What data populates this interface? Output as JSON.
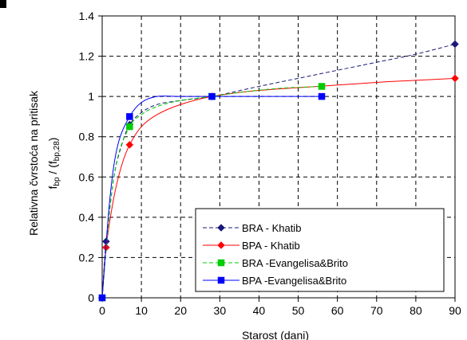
{
  "chart_data": {
    "type": "line",
    "title": "",
    "xlabel": "Starost (dani)",
    "ylabel_line1": "Relativna čvrstoća na pritisak",
    "ylabel_line2": {
      "f1": "f",
      "s1": "bp",
      "mid": " / (f",
      "s2": "bp,28",
      "end": ")"
    },
    "xlim": [
      0,
      90
    ],
    "ylim": [
      0,
      1.4
    ],
    "xticks": [
      0,
      10,
      20,
      30,
      40,
      50,
      60,
      70,
      80,
      90
    ],
    "yticks": [
      0,
      0.2,
      0.4,
      0.6,
      0.8,
      1,
      1.2,
      1.4
    ],
    "ytick_labels": [
      "0",
      "0.2",
      "0.4",
      "0.6",
      "0.8",
      "1",
      "1.2",
      "1.4"
    ],
    "grid": true,
    "legend_position": "bottom-right",
    "series": [
      {
        "name": "BRA - Khatib",
        "color": "#1a1a7a",
        "dash": true,
        "marker": "diamond",
        "markers": [
          [
            0,
            0
          ],
          [
            1,
            0.28
          ],
          [
            7,
            0.86
          ],
          [
            28,
            1.0
          ],
          [
            90,
            1.26
          ]
        ],
        "curve": [
          [
            0,
            0
          ],
          [
            1,
            0.28
          ],
          [
            3,
            0.6
          ],
          [
            5,
            0.76
          ],
          [
            7,
            0.86
          ],
          [
            10,
            0.92
          ],
          [
            14,
            0.96
          ],
          [
            20,
            0.98
          ],
          [
            28,
            1.0
          ],
          [
            40,
            1.05
          ],
          [
            55,
            1.11
          ],
          [
            70,
            1.17
          ],
          [
            80,
            1.21
          ],
          [
            90,
            1.26
          ]
        ]
      },
      {
        "name": "BPA - Khatib",
        "color": "#ff0000",
        "dash": false,
        "marker": "diamond",
        "markers": [
          [
            0,
            0
          ],
          [
            1,
            0.25
          ],
          [
            7,
            0.76
          ],
          [
            28,
            1.0
          ],
          [
            90,
            1.09
          ]
        ],
        "curve": [
          [
            0,
            0
          ],
          [
            1,
            0.25
          ],
          [
            3,
            0.5
          ],
          [
            5,
            0.66
          ],
          [
            7,
            0.76
          ],
          [
            10,
            0.85
          ],
          [
            14,
            0.91
          ],
          [
            20,
            0.96
          ],
          [
            28,
            1.0
          ],
          [
            40,
            1.03
          ],
          [
            55,
            1.05
          ],
          [
            70,
            1.07
          ],
          [
            80,
            1.08
          ],
          [
            90,
            1.09
          ]
        ]
      },
      {
        "name": "BRA -Evangelisa&Brito",
        "color": "#00cc00",
        "dash": true,
        "marker": "square",
        "markers": [
          [
            0,
            0
          ],
          [
            7,
            0.85
          ],
          [
            28,
            1.0
          ],
          [
            56,
            1.05
          ]
        ],
        "curve": [
          [
            0,
            0
          ],
          [
            2,
            0.45
          ],
          [
            4,
            0.7
          ],
          [
            7,
            0.85
          ],
          [
            10,
            0.91
          ],
          [
            14,
            0.95
          ],
          [
            20,
            0.98
          ],
          [
            28,
            1.0
          ],
          [
            35,
            1.02
          ],
          [
            45,
            1.04
          ],
          [
            56,
            1.05
          ]
        ]
      },
      {
        "name": "BPA -Evangelisa&Brito",
        "color": "#0000ff",
        "dash": false,
        "marker": "square",
        "markers": [
          [
            0,
            0
          ],
          [
            7,
            0.9
          ],
          [
            28,
            1.0
          ],
          [
            56,
            1.0
          ]
        ],
        "curve": [
          [
            0,
            0
          ],
          [
            2,
            0.5
          ],
          [
            4,
            0.76
          ],
          [
            7,
            0.9
          ],
          [
            10,
            0.97
          ],
          [
            14,
            1.0
          ],
          [
            20,
            1.0
          ],
          [
            28,
            1.0
          ],
          [
            35,
            1.0
          ],
          [
            45,
            1.0
          ],
          [
            56,
            1.0
          ]
        ]
      }
    ]
  }
}
